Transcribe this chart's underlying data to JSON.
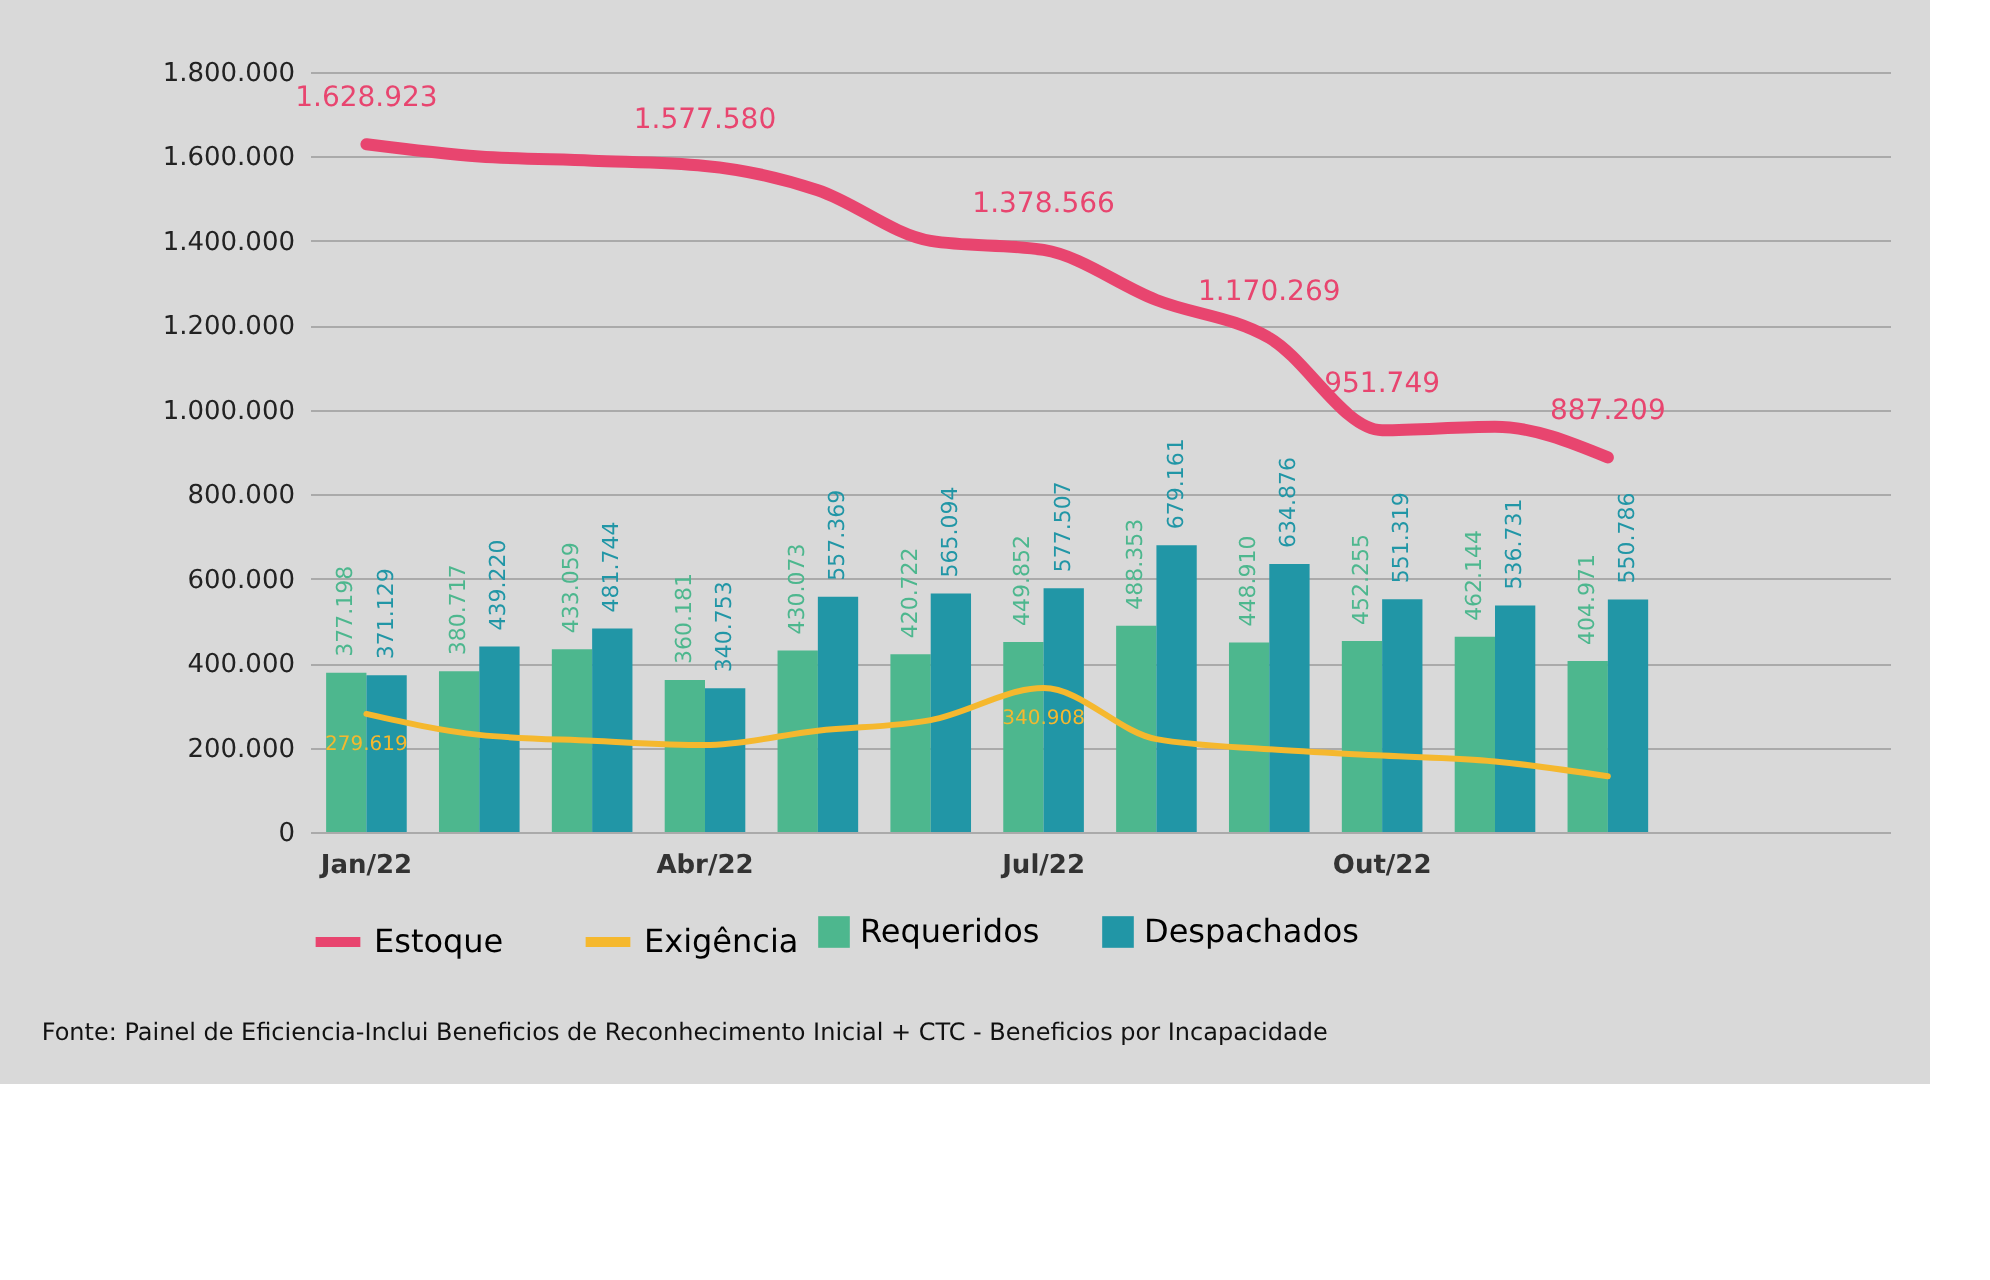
{
  "chart_data": {
    "type": "bar",
    "categories": [
      "Jan/22",
      null,
      null,
      "Abr/22",
      null,
      null,
      "Jul/22",
      null,
      null,
      "Out/22",
      null,
      null,
      null,
      null
    ],
    "series": [
      {
        "name": "Requeridos",
        "color": "#4db78e",
        "values": [
          377198,
          380717,
          433059,
          360181,
          430073,
          420722,
          449852,
          488353,
          448910,
          452255,
          462144,
          404971,
          null,
          null
        ],
        "value_labels": [
          "377.198",
          "380.717",
          "433.059",
          "360.181",
          "430.073",
          "420.722",
          "449.852",
          "488.353",
          "448.910",
          "452.255",
          "462.144",
          "404.971",
          null,
          null
        ]
      },
      {
        "name": "Despachados",
        "color": "#2196a6",
        "values": [
          371129,
          439220,
          481744,
          340753,
          557369,
          565094,
          577507,
          679161,
          634876,
          551319,
          536731,
          550786,
          null,
          null
        ],
        "value_labels": [
          "371.129",
          "439.220",
          "481.744",
          "340.753",
          "557.369",
          "565.094",
          "577.507",
          "679.161",
          "634.876",
          "551.319",
          "536.731",
          "550.786",
          null,
          null
        ]
      },
      {
        "name": "Estoque",
        "type": "line",
        "color": "#e8456f",
        "values": [
          1628923,
          1600000,
          1590000,
          1577580,
          1520000,
          1400000,
          1378566,
          1260000,
          1170269,
          951749,
          960000,
          887209,
          null,
          null
        ],
        "value_labels": [
          "1.628.923",
          null,
          null,
          "1.577.580",
          null,
          null,
          "1.378.566",
          null,
          "1.170.269",
          "951.749",
          null,
          "887.209",
          null,
          null
        ]
      },
      {
        "name": "Exigência",
        "type": "line",
        "color": "#f5b82e",
        "values": [
          279619,
          230000,
          216000,
          206000,
          240000,
          265000,
          340908,
          220000,
          196000,
          181000,
          167000,
          132000,
          null,
          null
        ],
        "value_labels": [
          "279.619",
          null,
          null,
          null,
          null,
          null,
          "340.908",
          null,
          null,
          null,
          null,
          null,
          null,
          null
        ]
      }
    ],
    "ylim": [
      0,
      1800000
    ],
    "yticks": [
      {
        "value": 0,
        "label": "0"
      },
      {
        "value": 200000,
        "label": "200.000"
      },
      {
        "value": 400000,
        "label": "400.000"
      },
      {
        "value": 600000,
        "label": "600.000"
      },
      {
        "value": 800000,
        "label": "800.000"
      },
      {
        "value": 1000000,
        "label": "1.000.000"
      },
      {
        "value": 1200000,
        "label": "1.200.000"
      },
      {
        "value": 1400000,
        "label": "1.400.000"
      },
      {
        "value": 1600000,
        "label": "1.600.000"
      },
      {
        "value": 1800000,
        "label": "1.800.000"
      }
    ],
    "grid": "y",
    "legend": "bottom",
    "annotations": [
      "Fonte: Painel de Eficiencia-Inclui Beneficios de Reconhecimento Inicial + CTC - Beneficios por Incapacidade"
    ]
  }
}
